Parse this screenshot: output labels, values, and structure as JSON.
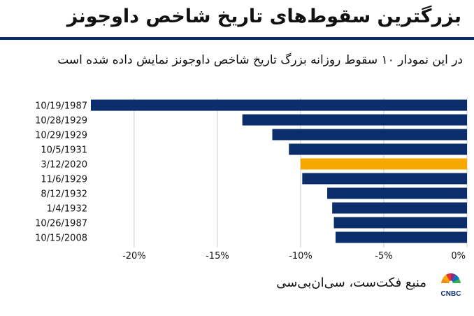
{
  "header": {
    "title": "بزرگترین سقوط‌های تاریخ شاخص داوجونز",
    "subtitle": "در این نمودار ۱۰ سقوط روزانه بزرگ تاریخ شاخص داوجونز نمایش داده شده است"
  },
  "footer": {
    "source": "منبع فکت‌ست، سی‌ان‌بی‌سی",
    "logo_text": "CNBC"
  },
  "colors": {
    "bar_default": "#0c2d6b",
    "bar_highlight": "#f5a800",
    "gridline": "#cccccc",
    "title_rule": "#0c2d6b"
  },
  "chart_data": {
    "type": "bar",
    "orientation": "horizontal",
    "title": "بزرگترین سقوط‌های تاریخ شاخص داوجونز",
    "xlabel": "",
    "ylabel": "",
    "categories": [
      "10/19/1987",
      "10/28/1929",
      "10/29/1929",
      "10/5/1931",
      "3/12/2020",
      "11/6/1929",
      "8/12/1932",
      "1/4/1932",
      "10/26/1987",
      "10/15/2008"
    ],
    "values": [
      -22.6,
      -13.5,
      -11.7,
      -10.7,
      -10.0,
      -9.9,
      -8.4,
      -8.1,
      -8.0,
      -7.9
    ],
    "highlight": "3/12/2020",
    "xlim": [
      -22.6,
      0
    ],
    "x_ticks": [
      -20,
      -15,
      -10,
      -5,
      0
    ],
    "x_tick_labels": [
      "-20%",
      "-15%",
      "-10%",
      "-5%",
      "0%"
    ],
    "grid": true,
    "legend": "none"
  }
}
